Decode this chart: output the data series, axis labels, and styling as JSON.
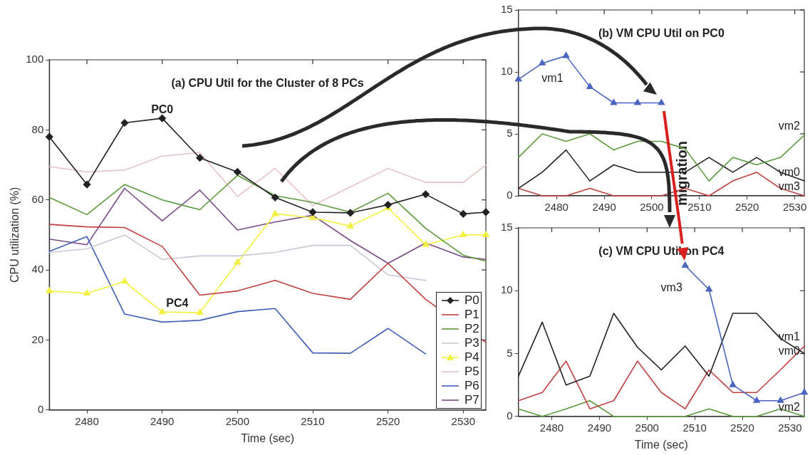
{
  "chart_data": [
    {
      "type": "line",
      "title": "(a) CPU Util for the Cluster of 8 PCs",
      "xlabel": "Time (sec)",
      "ylabel": "CPU utilization (%)",
      "x": [
        2475,
        2480,
        2485,
        2490,
        2495,
        2500,
        2505,
        2510,
        2515,
        2520,
        2525,
        2530,
        2533
      ],
      "xlim": [
        2475,
        2533
      ],
      "xticks": [
        2480,
        2490,
        2500,
        2510,
        2520,
        2530
      ],
      "ylim": [
        0,
        100
      ],
      "yticks": [
        0,
        20,
        40,
        60,
        80,
        100
      ],
      "legend": "bottom right",
      "series": [
        {
          "name": "P0",
          "color": "#222222",
          "marker": "diamond",
          "values": [
            78,
            64.4,
            82,
            83.3,
            72,
            68,
            60.7,
            56.5,
            56.3,
            58.6,
            61.6,
            56,
            56.5
          ]
        },
        {
          "name": "P1",
          "color": "#c04040",
          "x": [
            2475,
            2480,
            2485,
            2490,
            2495,
            2500,
            2505,
            2510,
            2515,
            2520,
            2525,
            2533
          ],
          "values": [
            53,
            52.3,
            52.1,
            46.7,
            32.8,
            34,
            37,
            33.3,
            31.6,
            41.9,
            31.6,
            19.3
          ]
        },
        {
          "name": "P2",
          "color": "#5a9a3a",
          "values": [
            60.7,
            55.8,
            64.4,
            60,
            57.2,
            67,
            61.2,
            59.3,
            56.5,
            61.9,
            51.9,
            44.2,
            42.5
          ]
        },
        {
          "name": "P3",
          "color": "#c8c8d8",
          "values": [
            45,
            46,
            50,
            43,
            44,
            44,
            45,
            47,
            47,
            38.6,
            37,
            null,
            null
          ]
        },
        {
          "name": "P4",
          "color": "#f2f040",
          "marker": "triangle",
          "values": [
            34,
            33.3,
            36.7,
            28,
            27.8,
            42.1,
            56,
            54.9,
            52.5,
            57.7,
            47.2,
            50,
            50
          ]
        },
        {
          "name": "P5",
          "color": "#e6c4c8",
          "values": [
            69.5,
            68,
            68.5,
            72.5,
            73.5,
            61,
            69,
            58.4,
            63.7,
            69,
            65,
            65,
            70
          ]
        },
        {
          "name": "P6",
          "color": "#4060b8",
          "x": [
            2475,
            2480,
            2485,
            2490,
            2495,
            2500,
            2505,
            2510,
            2515,
            2520,
            2525
          ],
          "values": [
            45.3,
            49.5,
            27.4,
            25.1,
            25.6,
            28.1,
            29,
            16.3,
            16.2,
            23.3,
            16
          ]
        },
        {
          "name": "P7",
          "color": "#7a4a8a",
          "values": [
            48.8,
            47.2,
            63.3,
            54,
            62.8,
            51.4,
            53.7,
            55.6,
            48.4,
            41.9,
            47.7,
            43.7,
            43
          ]
        }
      ],
      "annotations": [
        {
          "text": "PC0",
          "x": 2490,
          "y": 83.3
        },
        {
          "text": "PC4",
          "x": 2492,
          "y": 28
        }
      ]
    },
    {
      "type": "line",
      "title": "(b) VM CPU Util on PC0",
      "x": [
        2472,
        2477,
        2482,
        2487,
        2492,
        2497,
        2502,
        2507,
        2512,
        2517,
        2522,
        2527,
        2532
      ],
      "xlim": [
        2472,
        2532
      ],
      "xticks": [
        2480,
        2490,
        2500,
        2510,
        2520,
        2530
      ],
      "ylim": [
        0,
        15
      ],
      "yticks": [
        0,
        5,
        10,
        15
      ],
      "series": [
        {
          "name": "vm1",
          "color": "#4a64c0",
          "marker": "triangle",
          "values": [
            9.4,
            10.7,
            11.3,
            8.8,
            7.5,
            7.5,
            7.5,
            null,
            null,
            null,
            null,
            null,
            null
          ]
        },
        {
          "name": "vm2",
          "color": "#5a9a3a",
          "values": [
            3.1,
            5,
            4.4,
            5,
            3.7,
            4.4,
            4.4,
            3.8,
            1.2,
            3.1,
            2.5,
            3.1,
            4.9
          ]
        },
        {
          "name": "vm0",
          "color": "#222222",
          "values": [
            0.6,
            1.9,
            3.7,
            1.2,
            2.5,
            1.9,
            1.9,
            1.9,
            3.1,
            1.9,
            3.1,
            1.9,
            1.2
          ]
        },
        {
          "name": "vm3",
          "color": "#c04040",
          "values": [
            0.6,
            0,
            0,
            0.6,
            0,
            0,
            0,
            0.6,
            0,
            1.2,
            1.9,
            0.6,
            0
          ]
        }
      ],
      "annotations": [
        "migration"
      ]
    },
    {
      "type": "line",
      "title": "(c) VM CPU Util on PC4",
      "xlabel": "Time (sec)",
      "x": [
        2473,
        2478,
        2483,
        2488,
        2493,
        2498,
        2503,
        2508,
        2513,
        2518,
        2523,
        2528,
        2533
      ],
      "xlim": [
        2473,
        2533
      ],
      "xticks": [
        2480,
        2490,
        2500,
        2510,
        2520,
        2530
      ],
      "ylim": [
        0,
        15
      ],
      "yticks": [
        0,
        5,
        10,
        15
      ],
      "series": [
        {
          "name": "vm3",
          "color": "#4a64c0",
          "marker": "triangle",
          "values": [
            null,
            null,
            null,
            null,
            null,
            null,
            null,
            12,
            10.1,
            2.5,
            1.25,
            1.25,
            1.9
          ]
        },
        {
          "name": "vm0",
          "color": "#222222",
          "values": [
            3.2,
            7.5,
            2.5,
            3.2,
            8.2,
            5.5,
            3.7,
            5.6,
            3.2,
            8.2,
            8.2,
            6.2,
            5
          ]
        },
        {
          "name": "vm1",
          "color": "#c04040",
          "values": [
            1.25,
            1.9,
            4.4,
            0.6,
            1.25,
            4.4,
            1.9,
            0.6,
            3.7,
            1.9,
            1.9,
            3.7,
            5.6
          ]
        },
        {
          "name": "vm2",
          "color": "#5a9a3a",
          "values": [
            0.6,
            0,
            0.6,
            1.25,
            0,
            0,
            0,
            0,
            0.6,
            0,
            0,
            0.6,
            0
          ]
        }
      ]
    }
  ]
}
